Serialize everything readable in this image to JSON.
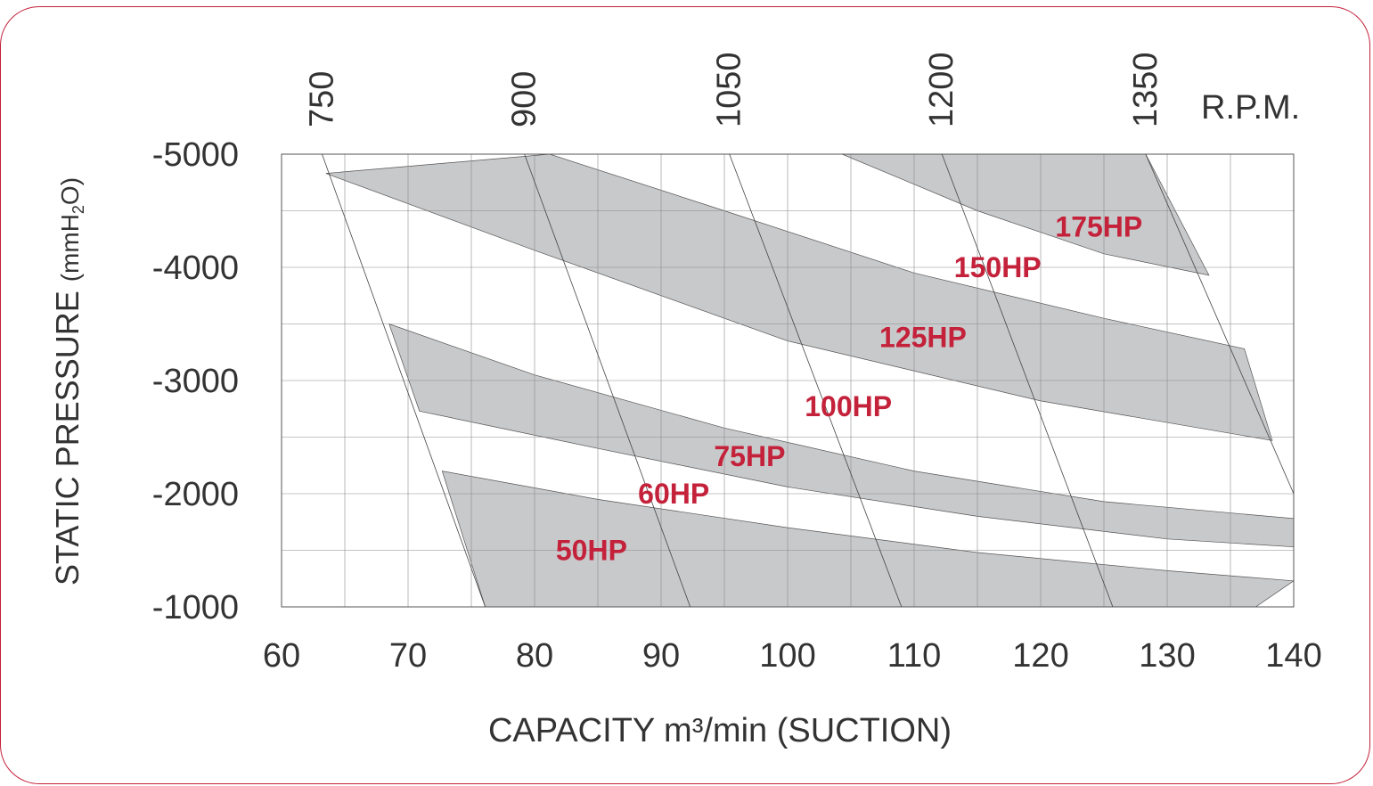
{
  "chart_data": {
    "type": "area",
    "x_axis": {
      "label": "CAPACITY m³/min (SUCTION)",
      "ticks": [
        60,
        70,
        80,
        90,
        100,
        110,
        120,
        130,
        140
      ],
      "range": [
        60,
        140
      ]
    },
    "y_axis": {
      "label_main": "STATIC PRESSURE",
      "label_unit": "(mmH",
      "label_unit_sub": "2",
      "label_unit_end": "O)",
      "ticks": [
        -1000,
        -2000,
        -3000,
        -4000,
        -5000
      ],
      "range": [
        -1000,
        -5000
      ]
    },
    "rpm_axis": {
      "label": "R.P.M.",
      "ticks": [
        {
          "label": "750",
          "x": 63.2
        },
        {
          "label": "900",
          "x": 79.2
        },
        {
          "label": "1050",
          "x": 95.4
        },
        {
          "label": "1200",
          "x": 112.2
        },
        {
          "label": "1350",
          "x": 128.3
        }
      ]
    },
    "grid": true,
    "rpm_lines": [
      {
        "rpm": "750",
        "points": [
          [
            63.2,
            -5000
          ],
          [
            76.1,
            -1000
          ]
        ]
      },
      {
        "rpm": "900",
        "points": [
          [
            79.2,
            -5000
          ],
          [
            92.3,
            -1000
          ]
        ]
      },
      {
        "rpm": "1050",
        "points": [
          [
            95.4,
            -5000
          ],
          [
            109.0,
            -1000
          ]
        ]
      },
      {
        "rpm": "1200",
        "points": [
          [
            112.2,
            -5000
          ],
          [
            125.7,
            -1000
          ]
        ]
      },
      {
        "rpm": "1350",
        "points": [
          [
            128.3,
            -5000
          ],
          [
            140.0,
            -2000
          ]
        ]
      }
    ],
    "bands": [
      {
        "name": "50HP",
        "label_at": [
          84.5,
          -1500
        ],
        "upper": [
          [
            72.7,
            -2200
          ],
          [
            85,
            -1950
          ],
          [
            100,
            -1700
          ],
          [
            115,
            -1480
          ],
          [
            130,
            -1320
          ],
          [
            140,
            -1230
          ]
        ],
        "lower": [
          [
            76.1,
            -1000
          ],
          [
            137,
            -1000
          ],
          [
            140,
            -1230
          ]
        ]
      },
      {
        "name": "60HP",
        "label_at": [
          91,
          -2000
        ]
      },
      {
        "name": "75HP",
        "label_at": [
          97,
          -2330
        ],
        "upper": [
          [
            68.5,
            -3500
          ],
          [
            80,
            -3050
          ],
          [
            95,
            -2580
          ],
          [
            110,
            -2200
          ],
          [
            125,
            -1930
          ],
          [
            140,
            -1780
          ]
        ],
        "lower": [
          [
            70.9,
            -2730
          ],
          [
            85,
            -2400
          ],
          [
            100,
            -2060
          ],
          [
            115,
            -1800
          ],
          [
            130,
            -1600
          ],
          [
            140,
            -1530
          ]
        ]
      },
      {
        "name": "100HP",
        "label_at": [
          104.8,
          -2770
        ]
      },
      {
        "name": "125HP",
        "label_at": [
          110.7,
          -3380
        ],
        "upper": [
          [
            81.2,
            -5000
          ],
          [
            95,
            -4500
          ],
          [
            110,
            -3950
          ],
          [
            125,
            -3550
          ],
          [
            136.1,
            -3280
          ]
        ],
        "lower": [
          [
            63.5,
            -4830
          ],
          [
            80,
            -4150
          ],
          [
            100,
            -3350
          ],
          [
            120,
            -2820
          ],
          [
            138.3,
            -2470
          ]
        ]
      },
      {
        "name": "150HP",
        "label_at": [
          116.6,
          -4000
        ]
      },
      {
        "name": "175HP",
        "label_at": [
          124.6,
          -4360
        ],
        "upper": [
          [
            128.3,
            -5000
          ],
          [
            133.3,
            -3930
          ]
        ],
        "lower": [
          [
            104.3,
            -5000
          ],
          [
            115,
            -4500
          ],
          [
            125,
            -4120
          ],
          [
            133.3,
            -3930
          ]
        ]
      }
    ],
    "band_color": "#c8c9cb",
    "hp_label_color": "#c4213a"
  }
}
